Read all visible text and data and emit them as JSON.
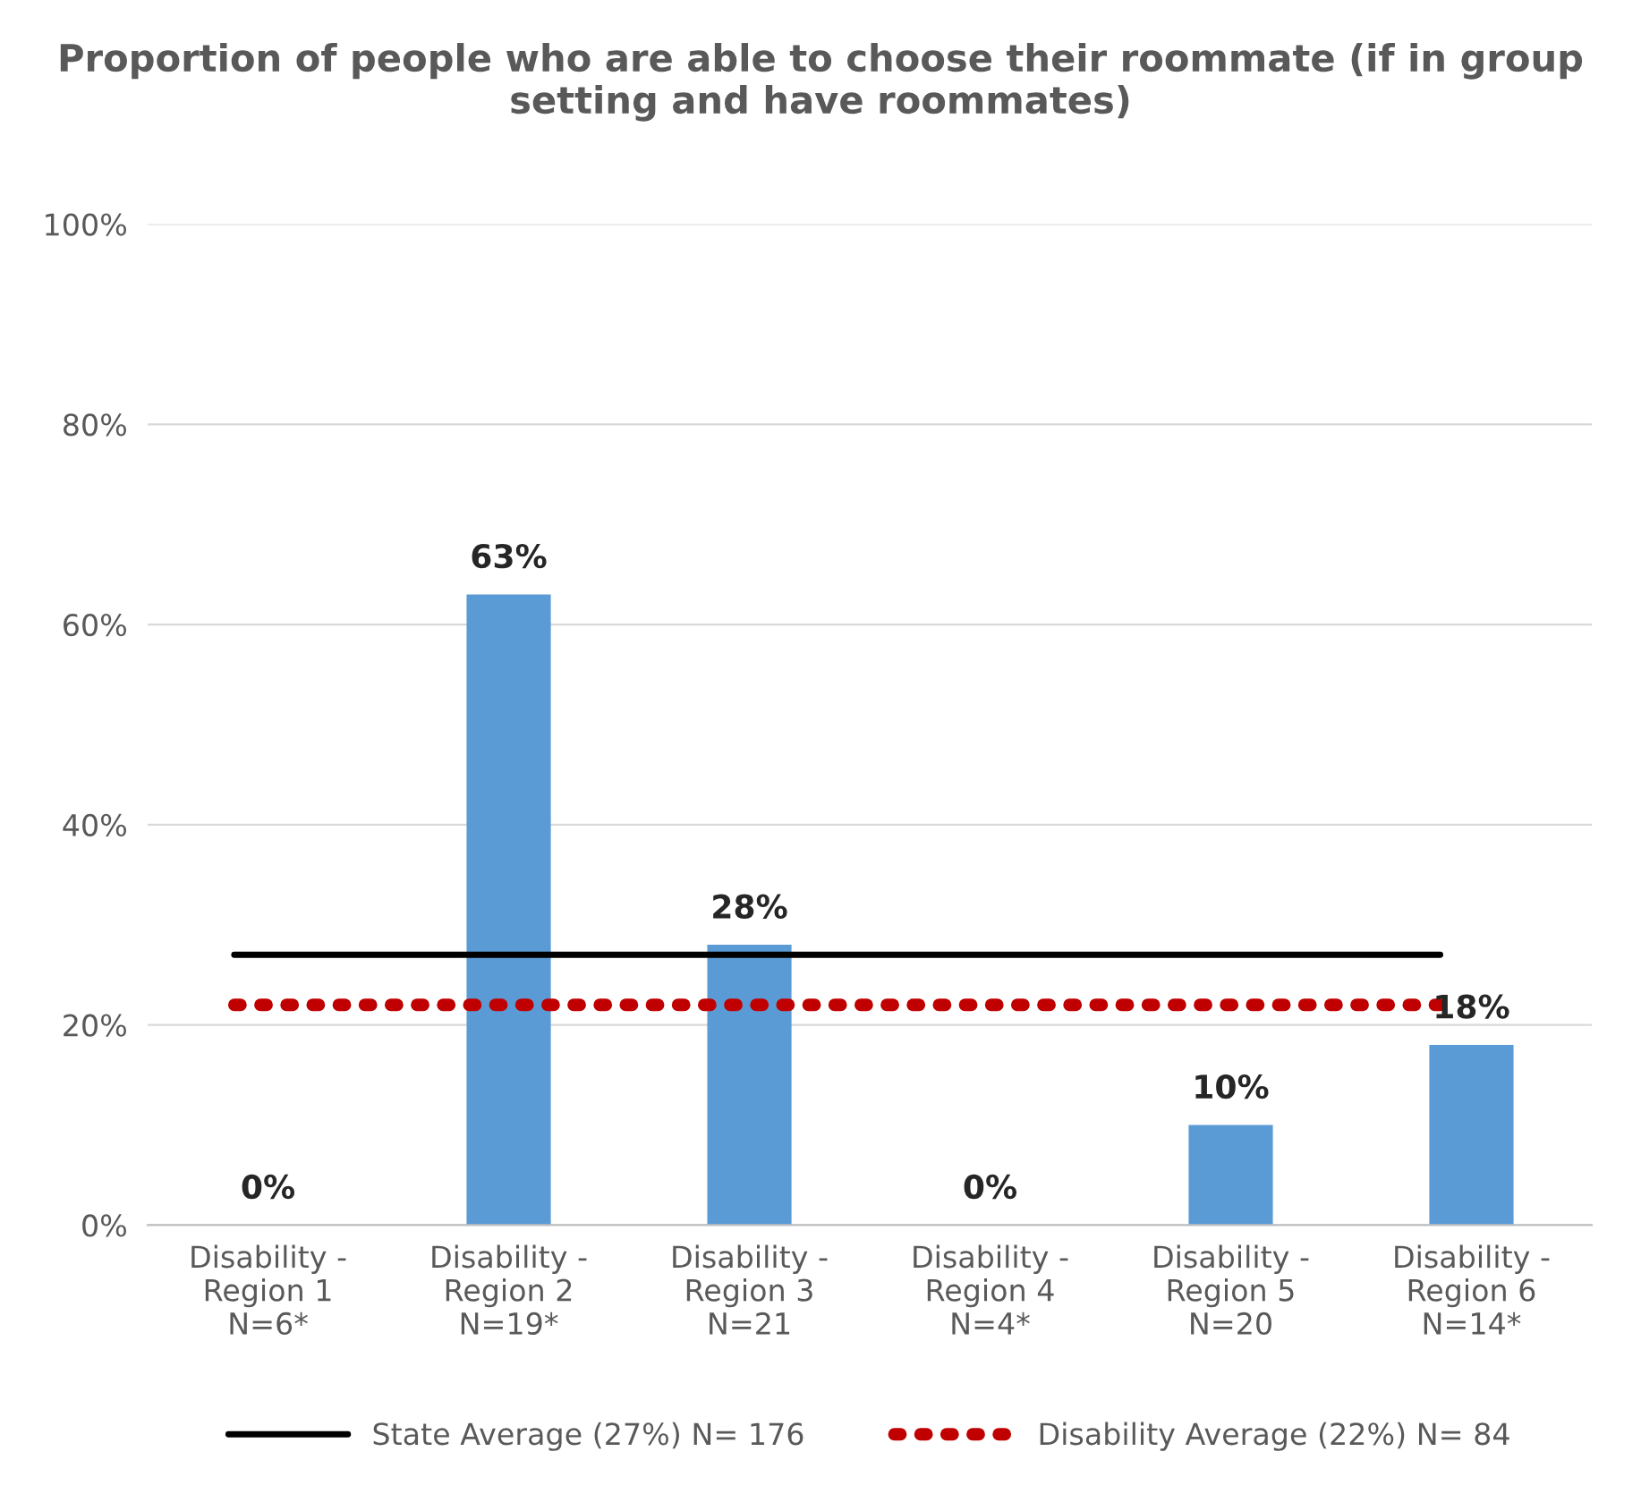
{
  "chart_data": {
    "type": "bar",
    "title": "Proportion of people who are able to choose their roommate (if in group setting and have roommates)",
    "categories": [
      "Disability -\nRegion 1\nN=6*",
      "Disability -\nRegion 2\nN=19*",
      "Disability -\nRegion 3\nN=21",
      "Disability -\nRegion 4\nN=4*",
      "Disability -\nRegion 5\nN=20",
      "Disability -\nRegion 6\nN=14*"
    ],
    "values": [
      0,
      63,
      28,
      0,
      10,
      18
    ],
    "color": "#5b9bd5",
    "value_labels": [
      "0%",
      "63%",
      "28%",
      "0%",
      "10%",
      "18%"
    ],
    "ylim": [
      0,
      100
    ],
    "yticks": [
      {
        "value": 0,
        "label": "0%"
      },
      {
        "value": 20,
        "label": "20%"
      },
      {
        "value": 40,
        "label": "40%"
      },
      {
        "value": 60,
        "label": "60%"
      },
      {
        "value": 80,
        "label": "80%"
      },
      {
        "value": 100,
        "label": "100%"
      }
    ],
    "grid": "y",
    "legend": "bottom",
    "ref_lines": [
      {
        "axis": "y",
        "value": 27,
        "label": "State Average (27%) N= 176",
        "color": "#000000",
        "line_style": "solid"
      },
      {
        "axis": "y",
        "value": 22,
        "label": "Disability Average (22%) N= 84",
        "color": "#c00000",
        "line_style": "dotted"
      }
    ]
  }
}
